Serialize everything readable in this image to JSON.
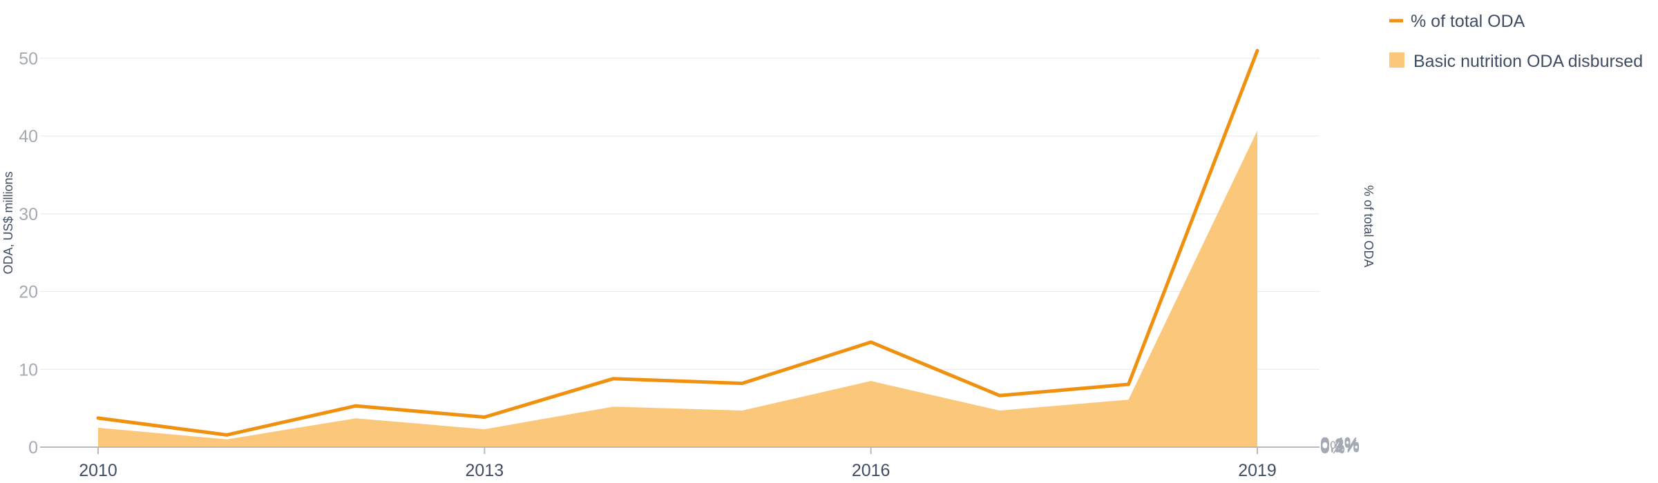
{
  "chart_data": {
    "type": "area",
    "x": [
      2010,
      2011,
      2012,
      2013,
      2014,
      2015,
      2016,
      2017,
      2018,
      2019
    ],
    "x_tick_labels": [
      "2010",
      "2013",
      "2016",
      "2019"
    ],
    "series": [
      {
        "name": "Basic nutrition ODA disbursed",
        "type": "area",
        "axis": "left",
        "color": "#fbc77a",
        "values": [
          2.5,
          1.0,
          3.7,
          2.3,
          5.2,
          4.7,
          8.5,
          4.7,
          6.1,
          40.7
        ]
      },
      {
        "name": "% of total ODA",
        "type": "line",
        "axis": "right",
        "color": "#f0900f",
        "values": [
          0.031,
          0.013,
          0.044,
          0.032,
          0.073,
          0.068,
          0.112,
          0.055,
          0.067,
          0.423
        ]
      }
    ],
    "ylabel_left": "ODA, US$ millions",
    "ylim_left": [
      0,
      55
    ],
    "yticks_left": [
      "0",
      "10",
      "20",
      "30",
      "40",
      "50"
    ],
    "ylabel_right": "% of total ODA",
    "ylim_right": [
      0,
      0.4564
    ],
    "yticks_right": [
      "0%",
      "0.1%",
      "0.2%",
      "0.3%",
      "0.4%"
    ],
    "grid": true,
    "legend_position": "top-right"
  }
}
